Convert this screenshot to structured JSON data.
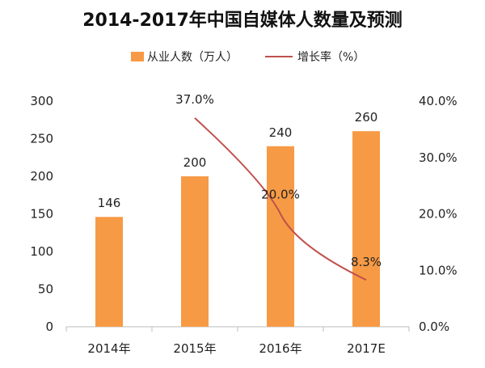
{
  "chart_data": {
    "type": "bar",
    "title": "2014-2017年中国自媒体人数量及预测",
    "categories": [
      "2014年",
      "2015年",
      "2016年",
      "2017E"
    ],
    "series": [
      {
        "name": "从业人数（万人）",
        "type": "bar",
        "axis": "left",
        "values": [
          146,
          200,
          240,
          260
        ],
        "color": "#F79A45"
      },
      {
        "name": "增长率（%）",
        "type": "line",
        "axis": "right",
        "x": [
          "2015年",
          "2016年",
          "2017E"
        ],
        "values": [
          37.0,
          20.0,
          8.3
        ],
        "color": "#C0504D"
      }
    ],
    "data_labels": {
      "bars": [
        "146",
        "200",
        "240",
        "260"
      ],
      "line": [
        "37.0%",
        "20.0%",
        "8.3%"
      ]
    },
    "ylim": [
      0,
      300
    ],
    "y_ticks": [
      "0",
      "50",
      "100",
      "150",
      "200",
      "250",
      "300"
    ],
    "y2lim": [
      0,
      40
    ],
    "y2_ticks": [
      "0.0%",
      "10.0%",
      "20.0%",
      "30.0%",
      "40.0%"
    ],
    "legend_position": "top-center",
    "grid": false
  }
}
